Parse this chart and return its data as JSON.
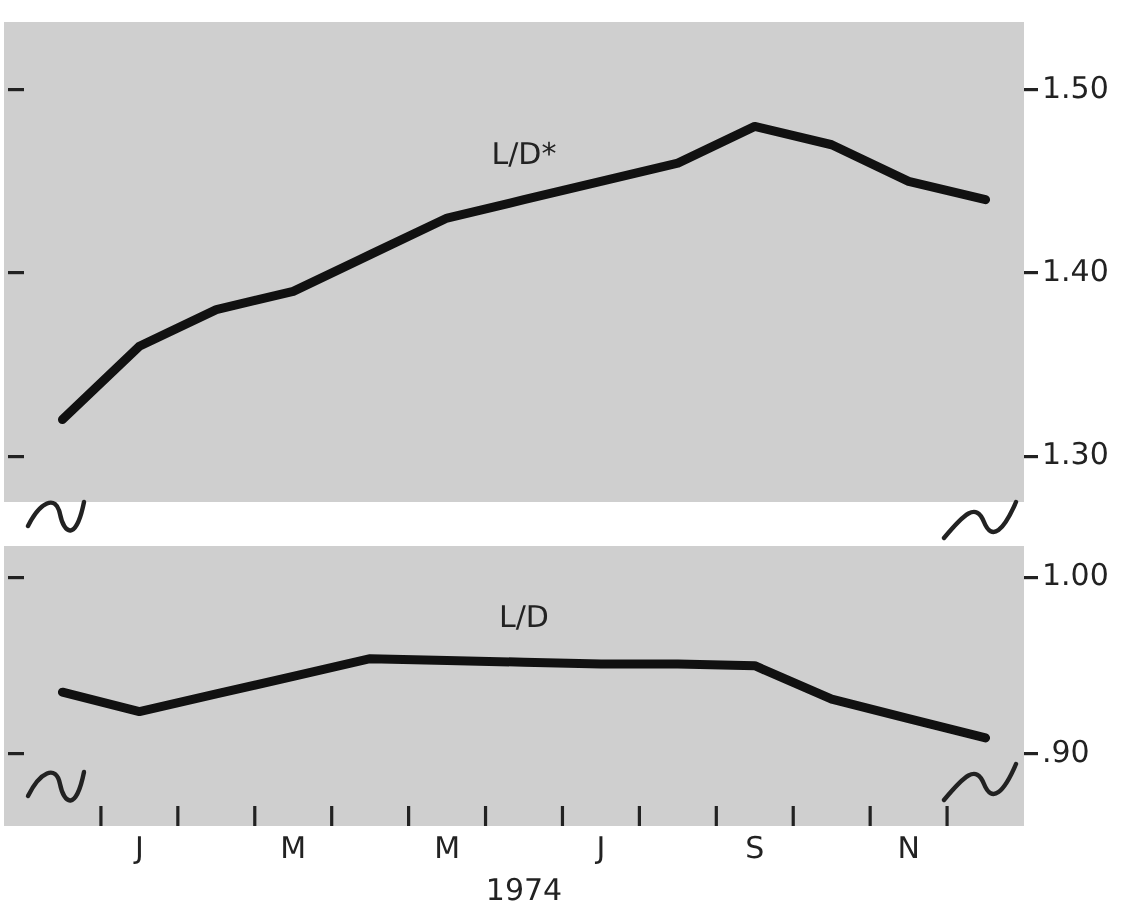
{
  "chart_data": [
    {
      "type": "line",
      "categories": [
        null,
        null,
        null,
        null,
        null,
        null,
        null,
        null,
        null,
        null,
        null,
        null,
        null
      ],
      "series": [
        {
          "name": "L/D*",
          "color": "#111111",
          "values": [
            1.32,
            1.36,
            1.38,
            1.39,
            1.41,
            1.43,
            1.44,
            1.45,
            1.46,
            1.48,
            1.47,
            1.45,
            1.44
          ]
        }
      ],
      "ylim": [
        1.275,
        1.537
      ],
      "yticks": [
        {
          "value": 1.3,
          "label": "1.30"
        },
        {
          "value": 1.4,
          "label": "1.40"
        },
        {
          "value": 1.5,
          "label": "1.50"
        }
      ],
      "tick_labels": "y",
      "grid": false
    },
    {
      "type": "line",
      "categories": [
        null,
        "J",
        null,
        "M",
        null,
        "M",
        null,
        "J",
        null,
        "S",
        null,
        "N",
        null
      ],
      "series": [
        {
          "name": "L/D",
          "color": "#111111",
          "values": [
            0.935,
            0.924,
            0.934,
            0.944,
            0.954,
            0.953,
            0.952,
            0.951,
            0.951,
            0.95,
            0.931,
            0.92,
            0.909
          ]
        }
      ],
      "xlabel": "1974",
      "ylim": [
        0.859,
        1.018
      ],
      "yticks": [
        {
          "value": 0.9,
          "label": ".90"
        },
        {
          "value": 1.0,
          "label": "1.00"
        }
      ],
      "grid": false
    }
  ]
}
